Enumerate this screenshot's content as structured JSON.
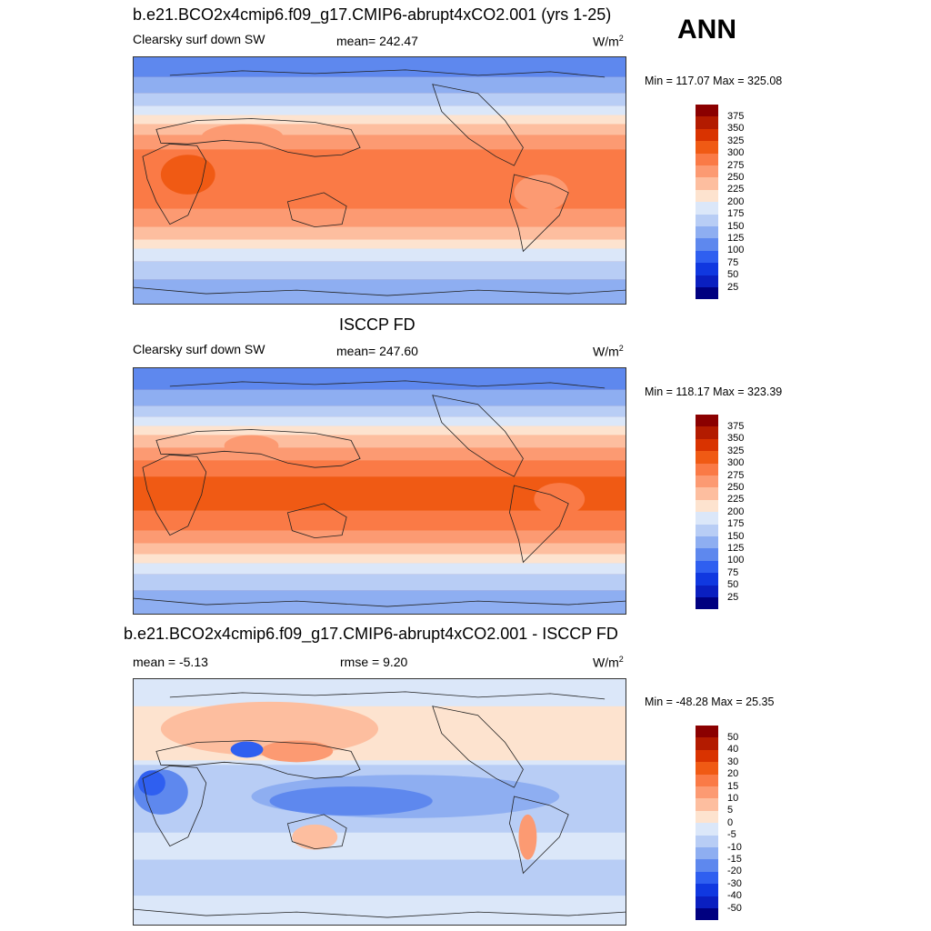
{
  "season": "ANN",
  "panels": [
    {
      "title": "b.e21.BCO2x4cmip6.f09_g17.CMIP6-abrupt4xCO2.001 (yrs 1-25)",
      "left_label": "Clearsky surf down SW",
      "center_label": "mean= 242.47",
      "units_base": "W/m",
      "units_exp": "2",
      "minmax": "Min = 117.07 Max = 325.08",
      "colorbar_levels": [
        "375",
        "350",
        "325",
        "300",
        "275",
        "250",
        "225",
        "200",
        "175",
        "150",
        "125",
        "100",
        "75",
        "50",
        "25"
      ],
      "colorbar_colors": [
        "#8b0000",
        "#b31b00",
        "#d93300",
        "#f05a14",
        "#fa7a46",
        "#fc9a72",
        "#fdbe9f",
        "#fde3cf",
        "#dbe7f9",
        "#b8cdf5",
        "#8eaef1",
        "#5e88ee",
        "#2f5ff0",
        "#1038e0",
        "#0a1fc0",
        "#000080"
      ]
    },
    {
      "title": "ISCCP FD",
      "left_label": "Clearsky surf down SW",
      "center_label": "mean= 247.60",
      "units_base": "W/m",
      "units_exp": "2",
      "minmax": "Min = 118.17 Max = 323.39",
      "colorbar_levels": [
        "375",
        "350",
        "325",
        "300",
        "275",
        "250",
        "225",
        "200",
        "175",
        "150",
        "125",
        "100",
        "75",
        "50",
        "25"
      ],
      "colorbar_colors": [
        "#8b0000",
        "#b31b00",
        "#d93300",
        "#f05a14",
        "#fa7a46",
        "#fc9a72",
        "#fdbe9f",
        "#fde3cf",
        "#dbe7f9",
        "#b8cdf5",
        "#8eaef1",
        "#5e88ee",
        "#2f5ff0",
        "#1038e0",
        "#0a1fc0",
        "#000080"
      ]
    },
    {
      "title": "b.e21.BCO2x4cmip6.f09_g17.CMIP6-abrupt4xCO2.001 - ISCCP FD",
      "left_label": "mean =  -5.13",
      "center_label": "rmse =   9.20",
      "units_base": "W/m",
      "units_exp": "2",
      "minmax": "Min = -48.28 Max =  25.35",
      "colorbar_levels": [
        "50",
        "40",
        "30",
        "20",
        "15",
        "10",
        "5",
        "0",
        "-5",
        "-10",
        "-15",
        "-20",
        "-30",
        "-40",
        "-50"
      ],
      "colorbar_colors": [
        "#8b0000",
        "#b31b00",
        "#d93300",
        "#f05a14",
        "#fa7a46",
        "#fc9a72",
        "#fdbe9f",
        "#fde3cf",
        "#dbe7f9",
        "#b8cdf5",
        "#8eaef1",
        "#5e88ee",
        "#2f5ff0",
        "#1038e0",
        "#0a1fc0",
        "#000080"
      ]
    }
  ]
}
